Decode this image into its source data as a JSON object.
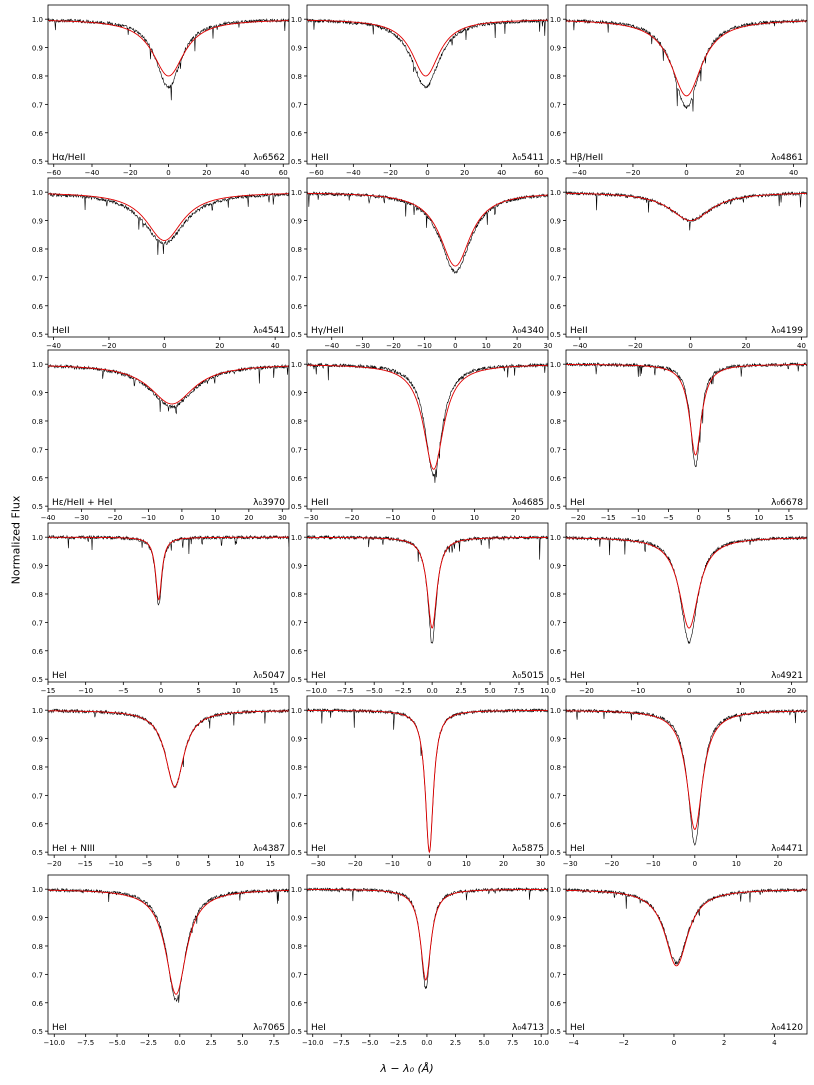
{
  "figure": {
    "ylabel": "Normalized Flux",
    "xlabel": "λ − λ₀ (Å)"
  },
  "colors": {
    "observed": "#000000",
    "model": "#e00000"
  },
  "chart_data": [
    {
      "type": "line",
      "line_label": "Hα/HeII",
      "lambda_label": "λ₀6562",
      "xlim": [
        -63,
        63
      ],
      "xticks": [
        -60,
        -40,
        -20,
        0,
        20,
        40,
        60
      ],
      "ylim": [
        0.49,
        1.05
      ],
      "yticks": [
        0.5,
        0.6,
        0.7,
        0.8,
        0.9,
        1.0
      ],
      "depth": 0.24,
      "width": 8,
      "center": 0,
      "model_depth": 0.2,
      "model_width": 10,
      "series": [
        {
          "name": "observed",
          "color": "#000000"
        },
        {
          "name": "model",
          "color": "#e00000"
        }
      ]
    },
    {
      "type": "line",
      "line_label": "HeII",
      "lambda_label": "λ₀5411",
      "xlim": [
        -65,
        65
      ],
      "xticks": [
        -60,
        -40,
        -20,
        0,
        20,
        40,
        60
      ],
      "ylim": [
        0.49,
        1.05
      ],
      "yticks": [
        0.5,
        0.6,
        0.7,
        0.8,
        0.9,
        1.0
      ],
      "depth": 0.24,
      "width": 9,
      "center": -1,
      "model_depth": 0.2,
      "model_width": 9,
      "series": [
        {
          "name": "observed",
          "color": "#000000"
        },
        {
          "name": "model",
          "color": "#e00000"
        }
      ]
    },
    {
      "type": "line",
      "line_label": "Hβ/HeII",
      "lambda_label": "λ₀4861",
      "xlim": [
        -45,
        45
      ],
      "xticks": [
        -40,
        -20,
        0,
        20,
        40
      ],
      "ylim": [
        0.49,
        1.05
      ],
      "yticks": [
        0.5,
        0.6,
        0.7,
        0.8,
        0.9,
        1.0
      ],
      "depth": 0.31,
      "width": 6,
      "center": 0,
      "model_depth": 0.27,
      "model_width": 7,
      "series": [
        {
          "name": "observed",
          "color": "#000000"
        },
        {
          "name": "model",
          "color": "#e00000"
        }
      ]
    },
    {
      "type": "line",
      "line_label": "HeII",
      "lambda_label": "λ₀4541",
      "xlim": [
        -42,
        45
      ],
      "xticks": [
        -40,
        -20,
        0,
        20,
        40
      ],
      "ylim": [
        0.49,
        1.05
      ],
      "yticks": [
        0.5,
        0.6,
        0.7,
        0.8,
        0.9,
        1.0
      ],
      "depth": 0.18,
      "width": 9,
      "center": 0,
      "model_depth": 0.17,
      "model_width": 8,
      "series": [
        {
          "name": "observed",
          "color": "#000000"
        },
        {
          "name": "model",
          "color": "#e00000"
        }
      ]
    },
    {
      "type": "line",
      "line_label": "Hγ/HeII",
      "lambda_label": "λ₀4340",
      "xlim": [
        -48,
        30
      ],
      "xticks": [
        -40,
        -30,
        -20,
        -10,
        0,
        10,
        20,
        30
      ],
      "ylim": [
        0.49,
        1.05
      ],
      "yticks": [
        0.5,
        0.6,
        0.7,
        0.8,
        0.9,
        1.0
      ],
      "depth": 0.28,
      "width": 6,
      "center": 0,
      "model_depth": 0.26,
      "model_width": 6,
      "series": [
        {
          "name": "observed",
          "color": "#000000"
        },
        {
          "name": "model",
          "color": "#e00000"
        }
      ]
    },
    {
      "type": "line",
      "line_label": "HeII",
      "lambda_label": "λ₀4199",
      "xlim": [
        -45,
        42
      ],
      "xticks": [
        -40,
        -20,
        0,
        20,
        40
      ],
      "ylim": [
        0.49,
        1.05
      ],
      "yticks": [
        0.5,
        0.6,
        0.7,
        0.8,
        0.9,
        1.0
      ],
      "depth": 0.1,
      "width": 9,
      "center": 0,
      "model_depth": 0.1,
      "model_width": 9,
      "series": [
        {
          "name": "observed",
          "color": "#000000"
        },
        {
          "name": "model",
          "color": "#e00000"
        }
      ]
    },
    {
      "type": "line",
      "line_label": "Hε/HeII + HeI",
      "lambda_label": "λ₀3970",
      "xlim": [
        -40,
        32
      ],
      "xticks": [
        -40,
        -30,
        -20,
        -10,
        0,
        10,
        20,
        30
      ],
      "ylim": [
        0.49,
        1.05
      ],
      "yticks": [
        0.5,
        0.6,
        0.7,
        0.8,
        0.9,
        1.0
      ],
      "depth": 0.15,
      "width": 8,
      "center": -3,
      "model_depth": 0.14,
      "model_width": 8,
      "series": [
        {
          "name": "observed",
          "color": "#000000"
        },
        {
          "name": "model",
          "color": "#e00000"
        }
      ]
    },
    {
      "type": "line",
      "line_label": "HeII",
      "lambda_label": "λ₀4685",
      "xlim": [
        -31,
        28
      ],
      "xticks": [
        -30,
        -20,
        -10,
        0,
        10,
        20
      ],
      "ylim": [
        0.49,
        1.05
      ],
      "yticks": [
        0.5,
        0.6,
        0.7,
        0.8,
        0.9,
        1.0
      ],
      "depth": 0.39,
      "width": 2.5,
      "center": 0,
      "model_depth": 0.37,
      "model_width": 3,
      "series": [
        {
          "name": "observed",
          "color": "#000000"
        },
        {
          "name": "model",
          "color": "#e00000"
        }
      ]
    },
    {
      "type": "line",
      "line_label": "HeI",
      "lambda_label": "λ₀6678",
      "xlim": [
        -22,
        18
      ],
      "xticks": [
        -20,
        -15,
        -10,
        -5,
        0,
        5,
        10,
        15
      ],
      "ylim": [
        0.49,
        1.05
      ],
      "yticks": [
        0.5,
        0.6,
        0.7,
        0.8,
        0.9,
        1.0
      ],
      "depth": 0.36,
      "width": 1,
      "center": -0.5,
      "model_depth": 0.32,
      "model_width": 1.2,
      "series": [
        {
          "name": "observed",
          "color": "#000000"
        },
        {
          "name": "model",
          "color": "#e00000"
        }
      ]
    },
    {
      "type": "line",
      "line_label": "HeI",
      "lambda_label": "λ₀5047",
      "xlim": [
        -15,
        17
      ],
      "xticks": [
        -15,
        -10,
        -5,
        0,
        5,
        10,
        15
      ],
      "ylim": [
        0.49,
        1.05
      ],
      "yticks": [
        0.5,
        0.6,
        0.7,
        0.8,
        0.9,
        1.0
      ],
      "depth": 0.24,
      "width": 0.5,
      "center": -0.3,
      "model_depth": 0.22,
      "model_width": 0.5,
      "series": [
        {
          "name": "observed",
          "color": "#000000"
        },
        {
          "name": "model",
          "color": "#e00000"
        }
      ]
    },
    {
      "type": "line",
      "line_label": "HeI",
      "lambda_label": "λ₀5015",
      "xlim": [
        -10.8,
        10
      ],
      "xticks": [
        -10.0,
        -7.5,
        -5.0,
        -2.5,
        0.0,
        2.5,
        5.0,
        7.5,
        10.0
      ],
      "ylim": [
        0.49,
        1.05
      ],
      "yticks": [
        0.5,
        0.6,
        0.7,
        0.8,
        0.9,
        1.0
      ],
      "depth": 0.37,
      "width": 0.45,
      "center": 0,
      "model_depth": 0.32,
      "model_width": 0.5,
      "series": [
        {
          "name": "observed",
          "color": "#000000"
        },
        {
          "name": "model",
          "color": "#e00000"
        }
      ]
    },
    {
      "type": "line",
      "line_label": "HeI",
      "lambda_label": "λ₀4921",
      "xlim": [
        -24,
        23
      ],
      "xticks": [
        -20,
        -10,
        0,
        10,
        20
      ],
      "ylim": [
        0.49,
        1.05
      ],
      "yticks": [
        0.5,
        0.6,
        0.7,
        0.8,
        0.9,
        1.0
      ],
      "depth": 0.37,
      "width": 2,
      "center": 0,
      "model_depth": 0.32,
      "model_width": 2.3,
      "series": [
        {
          "name": "observed",
          "color": "#000000"
        },
        {
          "name": "model",
          "color": "#e00000"
        }
      ]
    },
    {
      "type": "line",
      "line_label": "HeI + NIII",
      "lambda_label": "λ₀4387",
      "xlim": [
        -21,
        18
      ],
      "xticks": [
        -20,
        -15,
        -10,
        -5,
        0,
        5,
        10,
        15
      ],
      "ylim": [
        0.49,
        1.05
      ],
      "yticks": [
        0.5,
        0.6,
        0.7,
        0.8,
        0.9,
        1.0
      ],
      "depth": 0.27,
      "width": 1.8,
      "center": -0.5,
      "model_depth": 0.27,
      "model_width": 1.8,
      "series": [
        {
          "name": "observed",
          "color": "#000000"
        },
        {
          "name": "model",
          "color": "#e00000"
        }
      ]
    },
    {
      "type": "line",
      "line_label": "HeI",
      "lambda_label": "λ₀5875",
      "xlim": [
        -33,
        32
      ],
      "xticks": [
        -30,
        -20,
        -10,
        0,
        10,
        20,
        30
      ],
      "ylim": [
        0.49,
        1.05
      ],
      "yticks": [
        0.5,
        0.6,
        0.7,
        0.8,
        0.9,
        1.0
      ],
      "depth": 0.5,
      "width": 1.3,
      "center": 0,
      "model_depth": 0.5,
      "model_width": 1.3,
      "series": [
        {
          "name": "observed",
          "color": "#000000"
        },
        {
          "name": "model",
          "color": "#e00000"
        }
      ]
    },
    {
      "type": "line",
      "line_label": "HeI",
      "lambda_label": "λ₀4471",
      "xlim": [
        -31,
        27
      ],
      "xticks": [
        -30,
        -20,
        -10,
        0,
        10,
        20
      ],
      "ylim": [
        0.49,
        1.05
      ],
      "yticks": [
        0.5,
        0.6,
        0.7,
        0.8,
        0.9,
        1.0
      ],
      "depth": 0.47,
      "width": 2,
      "center": 0,
      "model_depth": 0.42,
      "model_width": 2.3,
      "series": [
        {
          "name": "observed",
          "color": "#000000"
        },
        {
          "name": "model",
          "color": "#e00000"
        }
      ]
    },
    {
      "type": "line",
      "line_label": "HeI",
      "lambda_label": "λ₀7065",
      "xlim": [
        -10.5,
        8.7
      ],
      "xticks": [
        -10.0,
        -7.5,
        -5.0,
        -2.5,
        0.0,
        2.5,
        5.0,
        7.5
      ],
      "ylim": [
        0.49,
        1.05
      ],
      "yticks": [
        0.5,
        0.6,
        0.7,
        0.8,
        0.9,
        1.0
      ],
      "depth": 0.39,
      "width": 0.9,
      "center": -0.3,
      "model_depth": 0.37,
      "model_width": 1.0,
      "series": [
        {
          "name": "observed",
          "color": "#000000"
        },
        {
          "name": "model",
          "color": "#e00000"
        }
      ]
    },
    {
      "type": "line",
      "line_label": "HeI",
      "lambda_label": "λ₀4713",
      "xlim": [
        -10.5,
        10.6
      ],
      "xticks": [
        -10.0,
        -7.5,
        -5.0,
        -2.5,
        0.0,
        2.5,
        5.0,
        7.5,
        10.0
      ],
      "ylim": [
        0.49,
        1.05
      ],
      "yticks": [
        0.5,
        0.6,
        0.7,
        0.8,
        0.9,
        1.0
      ],
      "depth": 0.35,
      "width": 0.5,
      "center": -0.1,
      "model_depth": 0.32,
      "model_width": 0.55,
      "series": [
        {
          "name": "observed",
          "color": "#000000"
        },
        {
          "name": "model",
          "color": "#e00000"
        }
      ]
    },
    {
      "type": "line",
      "line_label": "HeI",
      "lambda_label": "λ₀4120",
      "xlim": [
        -4.3,
        5.3
      ],
      "xticks": [
        -4,
        -2,
        0,
        2,
        4
      ],
      "ylim": [
        0.49,
        1.05
      ],
      "yticks": [
        0.5,
        0.6,
        0.7,
        0.8,
        0.9,
        1.0
      ],
      "depth": 0.26,
      "width": 0.55,
      "center": 0.1,
      "model_depth": 0.27,
      "model_width": 0.55,
      "series": [
        {
          "name": "observed",
          "color": "#000000"
        },
        {
          "name": "model",
          "color": "#e00000"
        }
      ]
    }
  ]
}
